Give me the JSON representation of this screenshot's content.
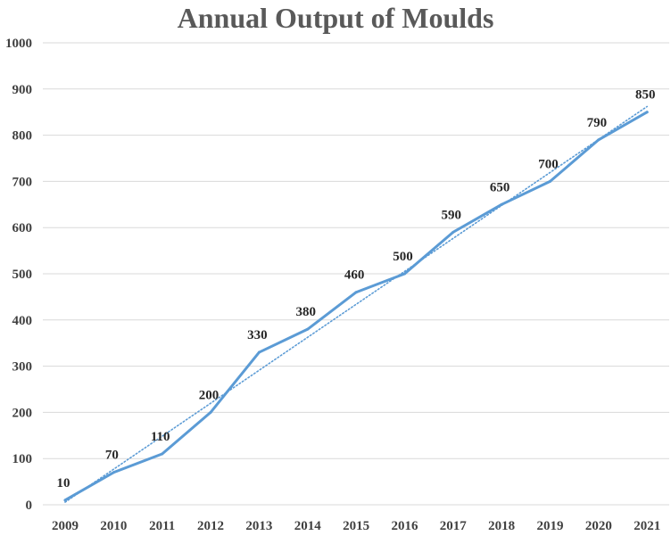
{
  "chart_data": {
    "type": "line",
    "title": "Annual Output of Moulds",
    "xlabel": "",
    "ylabel": "",
    "categories": [
      "2009",
      "2010",
      "2011",
      "2012",
      "2013",
      "2014",
      "2015",
      "2016",
      "2017",
      "2018",
      "2019",
      "2020",
      "2021"
    ],
    "series": [
      {
        "values": [
          10,
          70,
          110,
          200,
          330,
          380,
          460,
          500,
          590,
          650,
          700,
          790,
          850
        ]
      }
    ],
    "trendline": {
      "type": "linear",
      "style": "dotted"
    },
    "ylim": [
      0,
      1000
    ],
    "yticks": [
      "0",
      "100",
      "200",
      "300",
      "400",
      "500",
      "600",
      "700",
      "800",
      "900",
      "1000"
    ],
    "grid": "horizontal",
    "data_labels": true,
    "legend": "none",
    "colors": {
      "line": "#5b9bd5",
      "trendline": "#5b9bd5",
      "grid": "#d9d9d9",
      "title": "#595959"
    }
  }
}
